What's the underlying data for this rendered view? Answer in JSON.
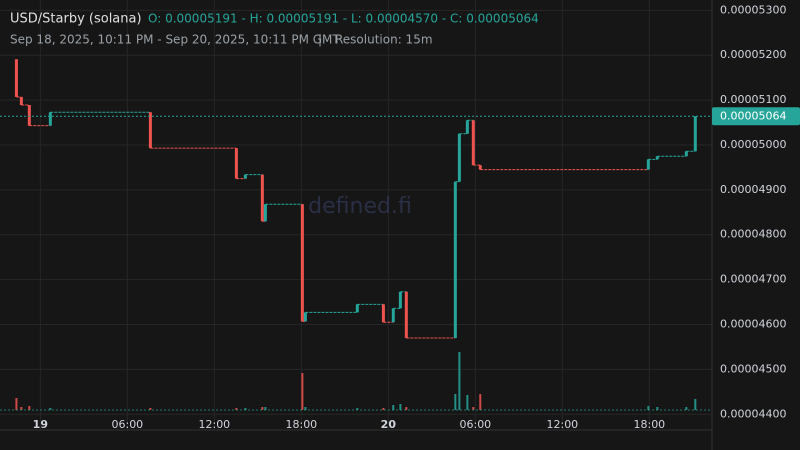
{
  "chart_data": {
    "type": "candlestick",
    "pair": "USD/Starby (solana)",
    "ohlc_summary": "O: 0.00005191 - H: 0.00005191 - L: 0.00004570 - C: 0.00005064",
    "range_text": "Sep 18, 2025, 10:11 PM - Sep 20, 2025, 10:11 PM GMT",
    "separator": "|",
    "resolution": "Resolution: 15m",
    "watermark": "defined.fi",
    "up_color": "#26a69a",
    "down_color": "#ef5350",
    "x": [
      -1.65,
      -1.31,
      -0.76,
      0.69,
      7.59,
      13.52,
      14.14,
      15.31,
      15.52,
      18.07,
      18.28,
      21.86,
      23.66,
      24.34,
      24.83,
      25.24,
      28.62,
      28.9,
      29.45,
      29.86,
      30.34,
      41.93,
      42.55,
      44.55,
      45.17
    ],
    "open": [
      5.191e-05,
      5.107e-05,
      5.089e-05,
      5.043e-05,
      5.073e-05,
      4.993e-05,
      4.925e-05,
      4.934e-05,
      4.83e-05,
      4.868e-05,
      4.607e-05,
      4.627e-05,
      4.645e-05,
      4.605e-05,
      4.636e-05,
      4.673e-05,
      4.57e-05,
      4.918e-05,
      5.025e-05,
      5.055e-05,
      4.955e-05,
      4.945e-05,
      4.968e-05,
      4.975e-05,
      4.986e-05
    ],
    "high": [
      5.191e-05,
      5.107e-05,
      5.089e-05,
      5.073e-05,
      5.073e-05,
      4.993e-05,
      4.934e-05,
      4.934e-05,
      4.868e-05,
      4.868e-05,
      4.627e-05,
      4.645e-05,
      4.645e-05,
      4.636e-05,
      4.673e-05,
      4.673e-05,
      4.918e-05,
      5.025e-05,
      5.055e-05,
      5.055e-05,
      4.955e-05,
      4.968e-05,
      4.975e-05,
      4.986e-05,
      5.064e-05
    ],
    "low": [
      5.107e-05,
      5.089e-05,
      5.043e-05,
      5.043e-05,
      4.993e-05,
      4.925e-05,
      4.925e-05,
      4.83e-05,
      4.83e-05,
      4.607e-05,
      4.607e-05,
      4.627e-05,
      4.605e-05,
      4.605e-05,
      4.636e-05,
      4.57e-05,
      4.57e-05,
      4.918e-05,
      5.025e-05,
      4.955e-05,
      4.945e-05,
      4.945e-05,
      4.968e-05,
      4.975e-05,
      4.986e-05
    ],
    "close": [
      5.107e-05,
      5.089e-05,
      5.043e-05,
      5.073e-05,
      4.993e-05,
      4.925e-05,
      4.934e-05,
      4.83e-05,
      4.868e-05,
      4.607e-05,
      4.627e-05,
      4.645e-05,
      4.605e-05,
      4.636e-05,
      4.673e-05,
      4.57e-05,
      4.918e-05,
      5.025e-05,
      5.055e-05,
      4.955e-05,
      4.945e-05,
      4.968e-05,
      4.975e-05,
      4.986e-05,
      5.064e-05
    ],
    "volume": [
      12,
      3,
      4,
      2,
      2,
      2,
      2,
      3,
      3,
      37,
      3,
      2,
      2,
      5,
      6,
      3,
      16,
      58,
      15,
      3,
      16,
      4,
      3,
      3,
      11
    ],
    "xlim": [
      -1.8167,
      46.1833
    ],
    "xticks": [
      {
        "value": 0,
        "label": "19"
      },
      {
        "value": 6,
        "label": "06:00"
      },
      {
        "value": 12,
        "label": "12:00"
      },
      {
        "value": 18,
        "label": "18:00"
      },
      {
        "value": 24,
        "label": "20"
      },
      {
        "value": 30,
        "label": "06:00"
      },
      {
        "value": 36,
        "label": "12:00"
      },
      {
        "value": 42,
        "label": "18:00"
      }
    ],
    "ylim": [
      4.365e-05,
      5.323e-05
    ],
    "yticks": [
      {
        "value": 4.4e-05,
        "label": "0.00004400"
      },
      {
        "value": 4.5e-05,
        "label": "0.00004500"
      },
      {
        "value": 4.6e-05,
        "label": "0.00004600"
      },
      {
        "value": 4.7e-05,
        "label": "0.00004700"
      },
      {
        "value": 4.8e-05,
        "label": "0.00004800"
      },
      {
        "value": 4.9e-05,
        "label": "0.00004900"
      },
      {
        "value": 5e-05,
        "label": "0.00005000"
      },
      {
        "value": 5.1e-05,
        "label": "0.00005100"
      },
      {
        "value": 5.2e-05,
        "label": "0.00005200"
      },
      {
        "value": 5.3e-05,
        "label": "0.00005300"
      }
    ],
    "grid": true
  }
}
